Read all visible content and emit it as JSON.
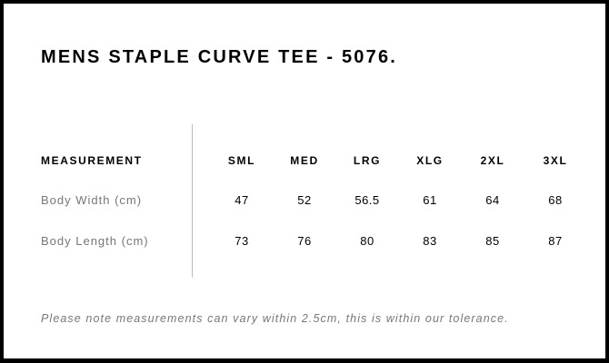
{
  "title": "MENS STAPLE CURVE TEE - 5076.",
  "table": {
    "header_label": "MEASUREMENT",
    "sizes": [
      "SML",
      "MED",
      "LRG",
      "XLG",
      "2XL",
      "3XL"
    ],
    "rows": [
      {
        "label": "Body Width (cm)",
        "values": [
          "47",
          "52",
          "56.5",
          "61",
          "64",
          "68"
        ]
      },
      {
        "label": "Body Length (cm)",
        "values": [
          "73",
          "76",
          "80",
          "83",
          "85",
          "87"
        ]
      }
    ]
  },
  "note": "Please note measurements can vary within 2.5cm, this is within our tolerance."
}
